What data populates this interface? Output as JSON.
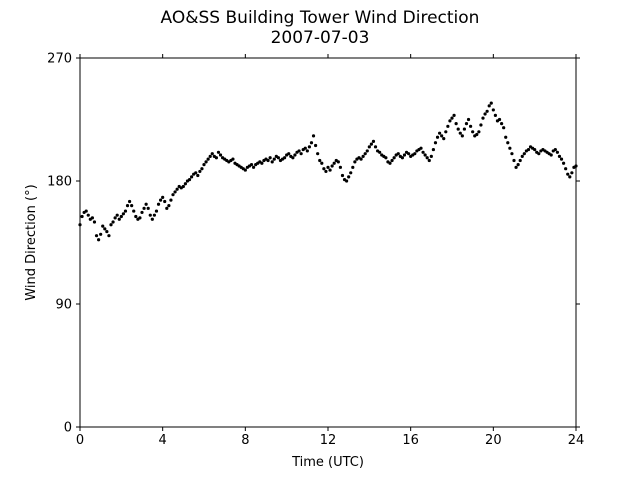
{
  "chart_data": {
    "type": "scatter",
    "title": "AO&SS Building Tower Wind Direction",
    "subtitle": "2007-07-03",
    "xlabel": "Time (UTC)",
    "ylabel": "Wind Direction (°)",
    "xlim": [
      0,
      24
    ],
    "ylim": [
      0,
      270
    ],
    "xticks": [
      0,
      4,
      8,
      12,
      16,
      20,
      24
    ],
    "xtick_labels": [
      "0",
      "4",
      "8",
      "12",
      "16",
      "20",
      "24"
    ],
    "yticks": [
      0,
      90,
      180,
      270
    ],
    "ytick_labels": [
      "0",
      "90",
      "180",
      "270"
    ],
    "grid": false,
    "legend": "none",
    "marker_color": "#000000",
    "x": [
      0.0,
      0.1,
      0.2,
      0.3,
      0.4,
      0.5,
      0.6,
      0.7,
      0.8,
      0.9,
      1.0,
      1.1,
      1.2,
      1.3,
      1.4,
      1.5,
      1.6,
      1.7,
      1.8,
      1.9,
      2.0,
      2.1,
      2.2,
      2.3,
      2.4,
      2.5,
      2.6,
      2.7,
      2.8,
      2.9,
      3.0,
      3.1,
      3.2,
      3.3,
      3.4,
      3.5,
      3.6,
      3.7,
      3.8,
      3.9,
      4.0,
      4.1,
      4.2,
      4.3,
      4.4,
      4.5,
      4.6,
      4.7,
      4.8,
      4.9,
      5.0,
      5.1,
      5.2,
      5.3,
      5.4,
      5.5,
      5.6,
      5.7,
      5.8,
      5.9,
      6.0,
      6.1,
      6.2,
      6.3,
      6.4,
      6.5,
      6.6,
      6.7,
      6.8,
      6.9,
      7.0,
      7.1,
      7.2,
      7.3,
      7.4,
      7.5,
      7.6,
      7.7,
      7.8,
      7.9,
      8.0,
      8.1,
      8.2,
      8.3,
      8.4,
      8.5,
      8.6,
      8.7,
      8.8,
      8.9,
      9.0,
      9.1,
      9.2,
      9.3,
      9.4,
      9.5,
      9.6,
      9.7,
      9.8,
      9.9,
      10.0,
      10.1,
      10.2,
      10.3,
      10.4,
      10.5,
      10.6,
      10.7,
      10.8,
      10.9,
      11.0,
      11.1,
      11.2,
      11.3,
      11.4,
      11.5,
      11.6,
      11.7,
      11.8,
      11.9,
      12.0,
      12.1,
      12.2,
      12.3,
      12.4,
      12.5,
      12.6,
      12.7,
      12.8,
      12.9,
      13.0,
      13.1,
      13.2,
      13.3,
      13.4,
      13.5,
      13.6,
      13.7,
      13.8,
      13.9,
      14.0,
      14.1,
      14.2,
      14.3,
      14.4,
      14.5,
      14.6,
      14.7,
      14.8,
      14.9,
      15.0,
      15.1,
      15.2,
      15.3,
      15.4,
      15.5,
      15.6,
      15.7,
      15.8,
      15.9,
      16.0,
      16.1,
      16.2,
      16.3,
      16.4,
      16.5,
      16.6,
      16.7,
      16.8,
      16.9,
      17.0,
      17.1,
      17.2,
      17.3,
      17.4,
      17.5,
      17.6,
      17.7,
      17.8,
      17.9,
      18.0,
      18.1,
      18.2,
      18.3,
      18.4,
      18.5,
      18.6,
      18.7,
      18.8,
      18.9,
      19.0,
      19.1,
      19.2,
      19.3,
      19.4,
      19.5,
      19.6,
      19.7,
      19.8,
      19.9,
      20.0,
      20.1,
      20.2,
      20.3,
      20.4,
      20.5,
      20.6,
      20.7,
      20.8,
      20.9,
      21.0,
      21.1,
      21.2,
      21.3,
      21.4,
      21.5,
      21.6,
      21.7,
      21.8,
      21.9,
      22.0,
      22.1,
      22.2,
      22.3,
      22.4,
      22.5,
      22.6,
      22.7,
      22.8,
      22.9,
      23.0,
      23.1,
      23.2,
      23.3,
      23.4,
      23.5,
      23.6,
      23.7,
      23.8,
      23.9,
      24.0
    ],
    "y": [
      148,
      154,
      157,
      158,
      155,
      152,
      153,
      150,
      140,
      137,
      141,
      147,
      145,
      143,
      140,
      148,
      150,
      153,
      155,
      152,
      154,
      156,
      158,
      162,
      165,
      162,
      158,
      154,
      152,
      153,
      157,
      160,
      163,
      160,
      155,
      152,
      155,
      158,
      163,
      166,
      168,
      165,
      160,
      162,
      166,
      170,
      172,
      174,
      176,
      175,
      176,
      178,
      180,
      181,
      183,
      185,
      186,
      184,
      187,
      189,
      192,
      194,
      196,
      198,
      200,
      198,
      197,
      201,
      199,
      197,
      196,
      195,
      194,
      195,
      196,
      193,
      192,
      191,
      190,
      189,
      188,
      190,
      191,
      192,
      190,
      192,
      193,
      194,
      193,
      195,
      196,
      195,
      197,
      194,
      196,
      198,
      197,
      195,
      196,
      197,
      199,
      200,
      198,
      197,
      199,
      201,
      202,
      200,
      203,
      204,
      202,
      205,
      208,
      213,
      206,
      200,
      195,
      193,
      189,
      187,
      190,
      188,
      191,
      193,
      195,
      194,
      190,
      184,
      181,
      180,
      183,
      186,
      190,
      194,
      196,
      197,
      196,
      198,
      200,
      202,
      205,
      207,
      209,
      205,
      202,
      201,
      199,
      198,
      197,
      194,
      193,
      195,
      197,
      199,
      200,
      198,
      197,
      199,
      201,
      200,
      198,
      199,
      200,
      202,
      203,
      204,
      201,
      199,
      197,
      195,
      198,
      203,
      208,
      212,
      215,
      213,
      211,
      216,
      220,
      224,
      226,
      228,
      222,
      218,
      215,
      213,
      218,
      222,
      225,
      220,
      216,
      213,
      214,
      216,
      221,
      226,
      229,
      231,
      235,
      237,
      232,
      228,
      224,
      225,
      222,
      219,
      212,
      208,
      204,
      200,
      195,
      190,
      192,
      195,
      198,
      200,
      202,
      203,
      205,
      204,
      203,
      201,
      200,
      202,
      203,
      202,
      201,
      200,
      199,
      202,
      203,
      201,
      198,
      196,
      193,
      189,
      185,
      183,
      186,
      190,
      191
    ]
  }
}
